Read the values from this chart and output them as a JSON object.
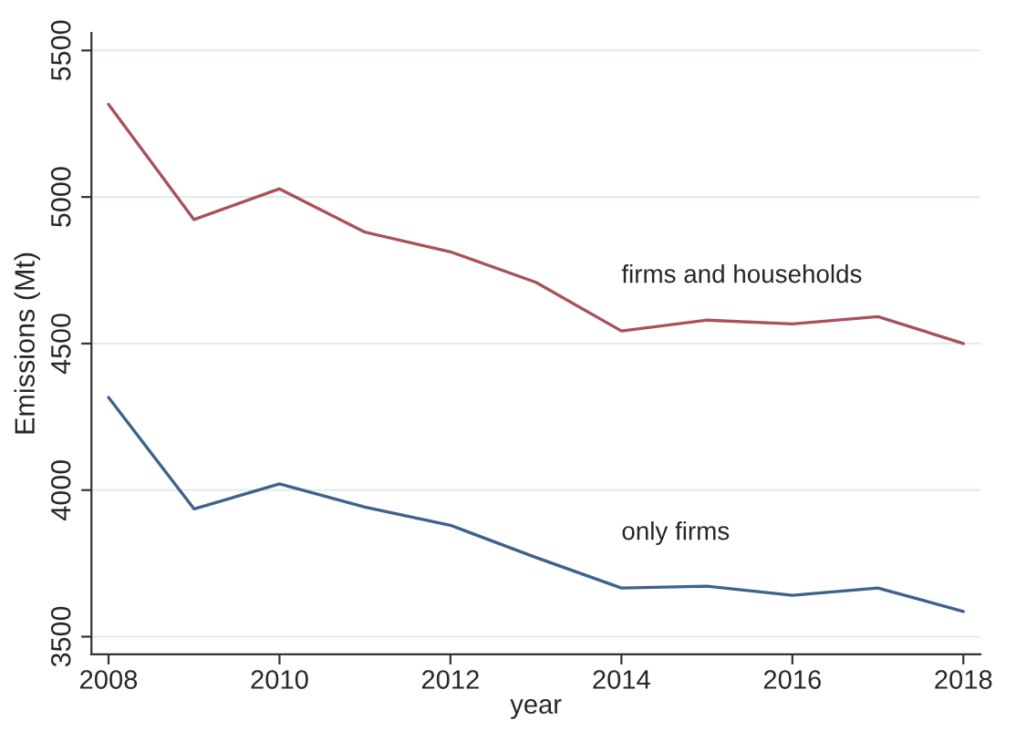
{
  "chart_data": {
    "type": "line",
    "xlabel": "year",
    "ylabel": "Emissions (Mt)",
    "x": [
      2008,
      2009,
      2010,
      2011,
      2012,
      2013,
      2014,
      2015,
      2016,
      2017,
      2018
    ],
    "series": [
      {
        "name": "firms and households",
        "color": "#a8515a",
        "values": [
          5316,
          4923,
          5028,
          4880,
          4813,
          4709,
          4543,
          4580,
          4567,
          4592,
          4500
        ]
      },
      {
        "name": "only firms",
        "color": "#3e6289",
        "values": [
          4316,
          3936,
          4021,
          3942,
          3880,
          3770,
          3666,
          3672,
          3641,
          3666,
          3586
        ]
      }
    ],
    "xlim": [
      2007.8,
      2018.2
    ],
    "ylim": [
      3440,
      5560
    ],
    "xticks": [
      2008,
      2010,
      2012,
      2014,
      2016,
      2018
    ],
    "yticks": [
      3500,
      4000,
      4500,
      5000,
      5500
    ],
    "grid": "y",
    "legend": false,
    "line_style": "solid",
    "marker": "none"
  }
}
